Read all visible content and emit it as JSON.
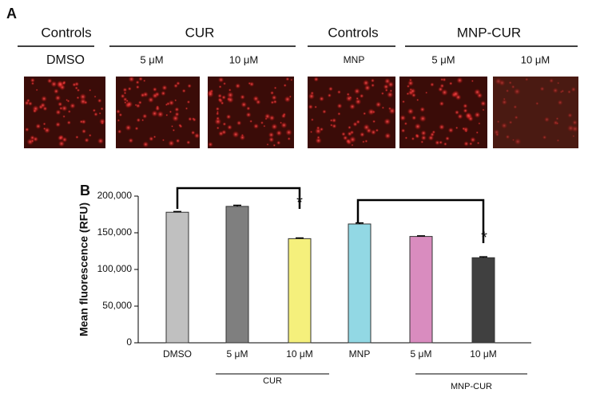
{
  "panel_a": {
    "label": "A",
    "groups": [
      "Controls",
      "CUR",
      "Controls",
      "MNP-CUR"
    ],
    "conditions": [
      "DMSO",
      "5 μM",
      "10 μM",
      "MNP",
      "5 μM",
      "10 μM"
    ]
  },
  "chart_data": {
    "type": "bar",
    "panel_label": "B",
    "ylabel": "Mean fluorescence (RFU)",
    "categories": [
      "DMSO",
      "5 μM",
      "10 μM",
      "MNP",
      "5 μM",
      "10 μM"
    ],
    "values": [
      178000,
      186000,
      142000,
      162000,
      145000,
      116000
    ],
    "errors": [
      1000,
      1500,
      1000,
      1500,
      800,
      1200
    ],
    "colors": [
      "#c0c0c0",
      "#7f7f7f",
      "#f5f07c",
      "#92d8e4",
      "#d98cbf",
      "#404040"
    ],
    "groups": [
      "CUR",
      "MNP-CUR"
    ],
    "annotations": [
      "*",
      "*"
    ],
    "ylim": [
      0,
      200000
    ],
    "yticks": [
      0,
      {
        "value": 50000,
        "label": "50,000"
      },
      {
        "value": 100000,
        "label": "100,000"
      },
      {
        "value": 150000,
        "label": "150,000"
      },
      {
        "value": 200000,
        "label": "200,000"
      }
    ]
  }
}
